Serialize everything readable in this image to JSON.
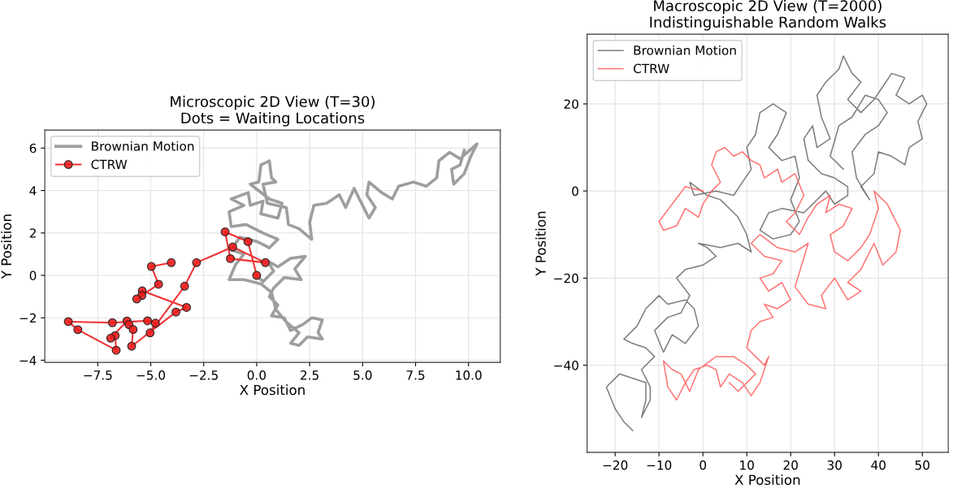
{
  "chart_data": [
    {
      "type": "line",
      "title": "Microscopic 2D View (T=30)\nDots = Waiting Locations",
      "xlabel": "X Position",
      "ylabel": "Y Position",
      "xlim": [
        -10,
        11.5
      ],
      "ylim": [
        -4.1,
        6.85
      ],
      "xticks": [
        {
          "value": -7.5,
          "label": "−7.5"
        },
        {
          "value": -5,
          "label": "−5.0"
        },
        {
          "value": -2.5,
          "label": "−2.5"
        },
        {
          "value": 0,
          "label": "0.0"
        },
        {
          "value": 2.5,
          "label": "2.5"
        },
        {
          "value": 5,
          "label": "5.0"
        },
        {
          "value": 7.5,
          "label": "7.5"
        },
        {
          "value": 10,
          "label": "10.0"
        }
      ],
      "yticks": [
        {
          "value": -4,
          "label": "−4"
        },
        {
          "value": -2,
          "label": "−2"
        },
        0,
        2,
        4,
        6
      ],
      "grid": true,
      "legend": "top left",
      "series": [
        {
          "name": "Brownian Motion",
          "color": "#939393",
          "marker": "none",
          "x": [
            0,
            0.3,
            0.8,
            0.5,
            1.0,
            1.6,
            2.3,
            1.8,
            2.1,
            1.3,
            0.8,
            0.6,
            1.0,
            0.7,
            1.3,
            1.6,
            2.2,
            2.6,
            3.1,
            2.9,
            3.1,
            2.4,
            2.0,
            1.6,
            2.0,
            1.4,
            0.9,
            0.7,
            0.2,
            -0.6,
            -1.3,
            -1.0,
            -0.6,
            -1.2,
            -0.8,
            0.0,
            0.6,
            1.0,
            0.3,
            -0.5,
            -1.2,
            -1.3,
            -0.6,
            -1.2,
            -0.4,
            -0.3,
            0.3,
            0.2,
            1.0,
            1.2,
            0.6,
            -0.3,
            0.1,
            0.2,
            0.6,
            0.7,
            0.9,
            0.3,
            0.5,
            1.4,
            1.5,
            2.0,
            2.6,
            2.5,
            2.7,
            3.3,
            3.9,
            4.2,
            4.6,
            4.9,
            5.3,
            5.6,
            5.2,
            5.3,
            5.9,
            6.4,
            6.7,
            7.4,
            8.0,
            8.5,
            8.6,
            9.1,
            9.6,
            10.4,
            10.1,
            9.8,
            9.3,
            9.2,
            9.6,
            9.8
          ],
          "values": [
            0,
            -0.3,
            0.2,
            0.7,
            0.4,
            0.8,
            0.9,
            0.3,
            -0.2,
            -0.1,
            -0.6,
            -1.0,
            -1.4,
            -1.9,
            -2.0,
            -2.6,
            -2.3,
            -2.0,
            -2.1,
            -2.7,
            -3.0,
            -2.9,
            -3.3,
            -3.2,
            -2.7,
            -2.2,
            -1.6,
            -0.8,
            -0.4,
            -0.2,
            -0.2,
            0.5,
            1.0,
            1.2,
            1.8,
            1.6,
            1.3,
            1.7,
            2.0,
            2.4,
            2.3,
            3.0,
            3.3,
            3.6,
            3.9,
            3.3,
            3.5,
            2.9,
            2.7,
            3.4,
            3.6,
            4.3,
            4.4,
            5.2,
            5.4,
            4.6,
            4.4,
            4.3,
            3.4,
            3.2,
            2.4,
            2.2,
            1.7,
            2.5,
            3.3,
            3.4,
            3.8,
            3.2,
            4.1,
            3.5,
            2.7,
            3.2,
            3.8,
            4.4,
            3.9,
            3.6,
            4.2,
            4.4,
            4.2,
            4.6,
            5.4,
            5.8,
            5.5,
            6.2,
            5.6,
            4.8,
            4.3,
            5.0,
            5.2,
            5.9
          ]
        },
        {
          "name": "CTRW",
          "color": "#ee1c1c",
          "marker": "circle",
          "x": [
            0,
            -0.41,
            -1.49,
            -1.24,
            0.41,
            -1.13,
            -2.84,
            -3.4,
            -5.03,
            -4.78,
            -5.15,
            -6.81,
            -8.89,
            -8.44,
            -6.63,
            -6.68,
            -6.89,
            -6.12,
            -6.03,
            -5.83,
            -5.9,
            -3.81,
            -3.31,
            -5.4,
            -5.42,
            -5.66,
            -4.63,
            -4.97,
            -4.03
          ],
          "values": [
            0,
            1.59,
            2.05,
            0.79,
            0.6,
            1.34,
            0.6,
            -0.51,
            -2.71,
            -2.25,
            -2.14,
            -2.23,
            -2.18,
            -2.56,
            -3.53,
            -2.84,
            -2.96,
            -2.15,
            -2.32,
            -2.55,
            -3.34,
            -1.73,
            -1.51,
            -0.73,
            -0.95,
            -1.11,
            -0.42,
            0.42,
            0.6
          ]
        }
      ]
    },
    {
      "type": "line",
      "title": "Macroscopic 2D View (T=2000)\nIndistinguishable Random Walks",
      "xlabel": "X Position",
      "ylabel": "Y Position",
      "xlim": [
        -26.4,
        55.9
      ],
      "ylim": [
        -60,
        36
      ],
      "xticks": [
        {
          "value": -20,
          "label": "−20"
        },
        {
          "value": -10,
          "label": "−10"
        },
        0,
        10,
        20,
        30,
        40,
        50
      ],
      "yticks": [
        {
          "value": -40,
          "label": "−40"
        },
        {
          "value": -20,
          "label": "−20"
        },
        0,
        20
      ],
      "grid": true,
      "legend": "top left",
      "series": [
        {
          "name": "Brownian Motion",
          "color": "#666666",
          "marker": "none",
          "x": [
            -16,
            -18,
            -20,
            -22,
            -19,
            -16,
            -13,
            -13,
            -14,
            -12,
            -12,
            -14,
            -11,
            -13,
            -16,
            -18,
            -15,
            -13,
            -10,
            -8,
            -4,
            -2,
            -1,
            -4,
            -7,
            -9,
            -11,
            -8,
            -5,
            -3,
            -6,
            -4,
            0,
            3,
            1,
            -1,
            4,
            8,
            11,
            10,
            8,
            4,
            1,
            -3,
            -2,
            3,
            7,
            9,
            11,
            10,
            12,
            13,
            16,
            19,
            17,
            15,
            18,
            21,
            22,
            20,
            22,
            20,
            16,
            13,
            15,
            18,
            23,
            25,
            28,
            30,
            33,
            33,
            30,
            27,
            24,
            23,
            25,
            26,
            29,
            27,
            26,
            28,
            31,
            32,
            34,
            36,
            33,
            36,
            39,
            41,
            43,
            46,
            44,
            47,
            50,
            51,
            49,
            50,
            47,
            46,
            43,
            40,
            39,
            36,
            38,
            35,
            34,
            37,
            40,
            42,
            40,
            37,
            34,
            31,
            29,
            32
          ],
          "values": [
            -55,
            -53,
            -50,
            -45,
            -42,
            -43,
            -44,
            -48,
            -52,
            -48,
            -45,
            -41,
            -38,
            -36,
            -35,
            -34,
            -31,
            -27,
            -24,
            -26,
            -25,
            -27,
            -31,
            -35,
            -33,
            -37,
            -32,
            -29,
            -28,
            -24,
            -20,
            -18,
            -17,
            -15,
            -13,
            -12,
            -13,
            -12,
            -14,
            -10,
            -6,
            -2,
            -1,
            2,
            -1,
            0,
            -1,
            2,
            5,
            10,
            13,
            18,
            20,
            18,
            13,
            10,
            7,
            8,
            3,
            -2,
            -7,
            -10,
            -11,
            -9,
            -5,
            -4,
            -5,
            -3,
            0,
            -3,
            -1,
            1,
            3,
            4,
            7,
            12,
            15,
            10,
            12,
            17,
            22,
            25,
            28,
            31,
            27,
            25,
            21,
            18,
            21,
            24,
            27,
            26,
            22,
            20,
            22,
            20,
            16,
            12,
            10,
            6,
            8,
            9,
            4,
            1,
            -2,
            3,
            9,
            13,
            15,
            18,
            21,
            22,
            17,
            15,
            8,
            5
          ]
        },
        {
          "name": "CTRW",
          "color": "#ff5a5a",
          "marker": "none",
          "x": [
            0,
            -4,
            -7,
            -10,
            -9,
            -6,
            -4,
            -1,
            0,
            2,
            4,
            2,
            3,
            5,
            7,
            9,
            11,
            13,
            14,
            17,
            18,
            21,
            23,
            21,
            19,
            22,
            24,
            26,
            29,
            28,
            31,
            34,
            32,
            29,
            30,
            33,
            36,
            38,
            40,
            39,
            42,
            45,
            44,
            41,
            39,
            36,
            33,
            36,
            33,
            30,
            27,
            28,
            24,
            21,
            24,
            21,
            17,
            13,
            11,
            14,
            18,
            16,
            13,
            15,
            18,
            20,
            17,
            14,
            16,
            13,
            11,
            10,
            12,
            14,
            15,
            13,
            11,
            9,
            6,
            4,
            3,
            1,
            -2,
            -4,
            -6,
            -8,
            -9,
            -7,
            -5,
            -3,
            -1,
            3,
            7,
            10,
            12,
            8,
            6
          ],
          "values": [
            0,
            1,
            -3,
            -7,
            -9,
            -8,
            -4,
            -6,
            -3,
            0,
            2,
            6,
            9,
            10,
            8,
            9,
            7,
            6,
            3,
            5,
            2,
            4,
            -1,
            -5,
            -7,
            -10,
            -6,
            -3,
            -1,
            -5,
            -3,
            -4,
            -8,
            -10,
            -14,
            -16,
            -13,
            -10,
            -4,
            0,
            -3,
            -9,
            -14,
            -17,
            -12,
            -18,
            -21,
            -23,
            -25,
            -20,
            -24,
            -27,
            -26,
            -22,
            -12,
            -14,
            -13,
            -10,
            -12,
            -15,
            -16,
            -19,
            -20,
            -23,
            -21,
            -25,
            -27,
            -26,
            -29,
            -30,
            -32,
            -36,
            -38,
            -40,
            -38,
            -44,
            -47,
            -44,
            -42,
            -45,
            -41,
            -40,
            -41,
            -44,
            -48,
            -45,
            -39,
            -41,
            -42,
            -46,
            -41,
            -38,
            -38,
            -40,
            -42,
            -46,
            -44
          ]
        }
      ]
    }
  ]
}
